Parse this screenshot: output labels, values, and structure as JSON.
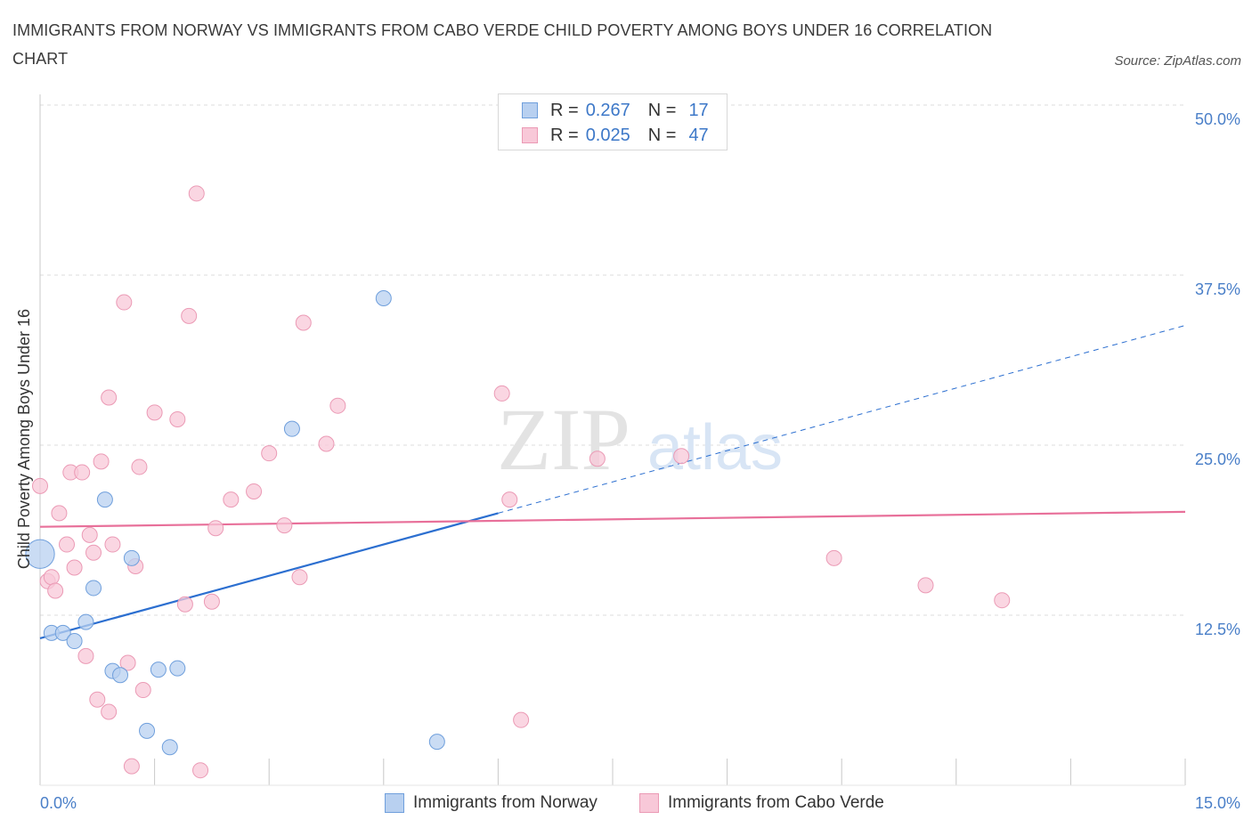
{
  "title": "IMMIGRANTS FROM NORWAY VS IMMIGRANTS FROM CABO VERDE CHILD POVERTY AMONG BOYS UNDER 16 CORRELATION CHART",
  "source": "Source: ZipAtlas.com",
  "watermark": {
    "zip": "ZIP",
    "atlas": "atlas"
  },
  "colors": {
    "norway_fill": "#b8d0f0",
    "norway_stroke": "#6f9fdc",
    "norway_line": "#2c6fd0",
    "cabo_fill": "#f8c8d8",
    "cabo_stroke": "#eb9ab5",
    "cabo_line": "#e8709a",
    "grid": "#dcdcdc",
    "axis_text": "#4a7fc8"
  },
  "legend": {
    "rows": [
      {
        "r_label": "R =",
        "r_value": "0.267",
        "n_label": "N =",
        "n_value": "17"
      },
      {
        "r_label": "R =",
        "r_value": "0.025",
        "n_label": "N =",
        "n_value": "47"
      }
    ]
  },
  "chart_data": {
    "type": "scatter",
    "ylabel": "Child Poverty Among Boys Under 16",
    "x_tick_labels": [
      "0.0%",
      "15.0%"
    ],
    "y_tick_labels": [
      "12.5%",
      "25.0%",
      "37.5%",
      "50.0%"
    ],
    "y_ticks": [
      12.5,
      25.0,
      37.5,
      50.0
    ],
    "xlim": [
      0,
      15
    ],
    "ylim": [
      0,
      50
    ],
    "grid": true,
    "series": [
      {
        "name": "Immigrants from Norway",
        "points": [
          [
            0.0,
            17.0,
            1.9
          ],
          [
            0.15,
            11.2,
            1
          ],
          [
            0.3,
            11.2,
            1
          ],
          [
            0.45,
            10.6,
            1
          ],
          [
            0.6,
            12.0,
            1
          ],
          [
            0.7,
            14.5,
            1
          ],
          [
            0.85,
            21.0,
            1
          ],
          [
            0.95,
            8.4,
            1
          ],
          [
            1.05,
            8.1,
            1
          ],
          [
            1.2,
            16.7,
            1
          ],
          [
            1.4,
            4.0,
            1
          ],
          [
            1.55,
            8.5,
            1
          ],
          [
            1.7,
            2.8,
            1
          ],
          [
            1.8,
            8.6,
            1
          ],
          [
            3.3,
            26.2,
            1
          ],
          [
            4.5,
            35.8,
            1
          ],
          [
            5.2,
            3.2,
            1
          ]
        ],
        "trend": {
          "x0": 0.0,
          "y0": 10.8,
          "x1": 6.0,
          "y1": 20.0,
          "dash_to_x": 15.0,
          "dash_to_y": 33.8
        }
      },
      {
        "name": "Immigrants from Cabo Verde",
        "points": [
          [
            0.0,
            22.0,
            1
          ],
          [
            0.1,
            15.0,
            1
          ],
          [
            0.15,
            15.3,
            1
          ],
          [
            0.2,
            14.3,
            1
          ],
          [
            0.25,
            20.0,
            1
          ],
          [
            0.35,
            17.7,
            1
          ],
          [
            0.4,
            23.0,
            1
          ],
          [
            0.45,
            16.0,
            1
          ],
          [
            0.55,
            23.0,
            1
          ],
          [
            0.6,
            9.5,
            1
          ],
          [
            0.65,
            18.4,
            1
          ],
          [
            0.7,
            17.1,
            1
          ],
          [
            0.75,
            6.3,
            1
          ],
          [
            0.8,
            23.8,
            1
          ],
          [
            0.9,
            5.4,
            1
          ],
          [
            0.9,
            28.5,
            1
          ],
          [
            0.95,
            17.7,
            1
          ],
          [
            1.1,
            35.5,
            1
          ],
          [
            1.15,
            9.0,
            1
          ],
          [
            1.2,
            1.4,
            1
          ],
          [
            1.25,
            16.1,
            1
          ],
          [
            1.3,
            23.4,
            1
          ],
          [
            1.35,
            7.0,
            1
          ],
          [
            1.5,
            27.4,
            1
          ],
          [
            1.8,
            26.9,
            1
          ],
          [
            1.9,
            13.3,
            1
          ],
          [
            1.95,
            34.5,
            1
          ],
          [
            2.05,
            43.5,
            1
          ],
          [
            2.1,
            1.1,
            1
          ],
          [
            2.25,
            13.5,
            1
          ],
          [
            2.3,
            18.9,
            1
          ],
          [
            2.5,
            21.0,
            1
          ],
          [
            2.8,
            21.6,
            1
          ],
          [
            3.0,
            24.4,
            1
          ],
          [
            3.2,
            19.1,
            1
          ],
          [
            3.4,
            15.3,
            1
          ],
          [
            3.45,
            34.0,
            1
          ],
          [
            3.75,
            25.1,
            1
          ],
          [
            3.9,
            27.9,
            1
          ],
          [
            6.05,
            28.8,
            1
          ],
          [
            6.15,
            21.0,
            1
          ],
          [
            6.3,
            4.8,
            1
          ],
          [
            7.3,
            24.0,
            1
          ],
          [
            8.4,
            24.2,
            1
          ],
          [
            10.4,
            16.7,
            1
          ],
          [
            11.6,
            14.7,
            1
          ],
          [
            12.6,
            13.6,
            1
          ]
        ],
        "trend": {
          "x0": 0.0,
          "y0": 19.0,
          "x1": 15.0,
          "y1": 20.1
        }
      }
    ]
  }
}
